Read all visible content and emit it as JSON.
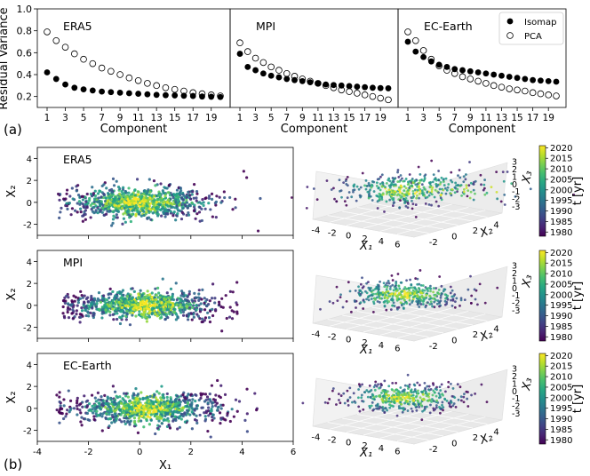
{
  "chart_data": {
    "type": "scatter",
    "figure_labels": [
      "(a)",
      "(b)"
    ],
    "panel_a": {
      "ylabel": "Residual Variance",
      "xlabel": "Component",
      "ylim": [
        0.1,
        1.0
      ],
      "yticks": [
        0.2,
        0.4,
        0.6,
        0.8,
        1.0
      ],
      "xticks": [
        1,
        3,
        5,
        7,
        9,
        11,
        13,
        15,
        17,
        19
      ],
      "components": [
        1,
        2,
        3,
        4,
        5,
        6,
        7,
        8,
        9,
        10,
        11,
        12,
        13,
        14,
        15,
        16,
        17,
        18,
        19,
        20
      ],
      "legend": {
        "isomap": "Isomap",
        "pca": "PCA",
        "placement": "top-right"
      },
      "panels": [
        {
          "title": "ERA5",
          "isomap": [
            0.42,
            0.36,
            0.31,
            0.28,
            0.265,
            0.255,
            0.245,
            0.24,
            0.235,
            0.23,
            0.225,
            0.22,
            0.215,
            0.212,
            0.21,
            0.207,
            0.205,
            0.2,
            0.198,
            0.195
          ],
          "pca": [
            0.79,
            0.71,
            0.65,
            0.59,
            0.54,
            0.5,
            0.46,
            0.43,
            0.4,
            0.37,
            0.345,
            0.32,
            0.3,
            0.28,
            0.265,
            0.25,
            0.235,
            0.225,
            0.215,
            0.205
          ]
        },
        {
          "title": "MPI",
          "isomap": [
            0.59,
            0.47,
            0.44,
            0.41,
            0.39,
            0.375,
            0.36,
            0.35,
            0.34,
            0.33,
            0.32,
            0.31,
            0.305,
            0.3,
            0.295,
            0.29,
            0.285,
            0.28,
            0.277,
            0.275
          ],
          "pca": [
            0.69,
            0.61,
            0.55,
            0.51,
            0.47,
            0.44,
            0.41,
            0.385,
            0.36,
            0.34,
            0.32,
            0.3,
            0.28,
            0.26,
            0.245,
            0.23,
            0.215,
            0.2,
            0.185,
            0.17
          ]
        },
        {
          "title": "EC-Earth",
          "isomap": [
            0.7,
            0.61,
            0.56,
            0.52,
            0.49,
            0.47,
            0.45,
            0.44,
            0.43,
            0.42,
            0.41,
            0.4,
            0.39,
            0.38,
            0.37,
            0.36,
            0.35,
            0.345,
            0.34,
            0.335
          ],
          "pca": [
            0.79,
            0.71,
            0.62,
            0.54,
            0.48,
            0.44,
            0.41,
            0.38,
            0.36,
            0.34,
            0.32,
            0.3,
            0.285,
            0.27,
            0.26,
            0.25,
            0.235,
            0.225,
            0.215,
            0.205
          ]
        }
      ]
    },
    "panel_b": {
      "xlabel": "X₁",
      "ylabel": "X₂",
      "xlim": [
        -4,
        6
      ],
      "ylim": [
        -3,
        5
      ],
      "xticks": [
        -4,
        -2,
        0,
        2,
        4,
        6
      ],
      "yticks": [
        -2,
        0,
        2,
        4
      ],
      "scatter_titles": [
        "ERA5",
        "MPI",
        "EC-Earth"
      ],
      "view3d": {
        "x_label": "X₁",
        "y_label": "X₂",
        "z_label": "X₃",
        "x_ticks": [
          "-4",
          "-2",
          "0",
          "2",
          "4",
          "6"
        ],
        "y_ticks": [
          "-2",
          "0",
          "2",
          "4"
        ],
        "z_ticks": [
          "-3",
          "-2",
          "-1",
          "0",
          "1",
          "2",
          "3"
        ]
      },
      "colorbar": {
        "label": "t [yr]",
        "ticks": [
          1980,
          1985,
          1990,
          1995,
          2000,
          2005,
          2010,
          2015,
          2020
        ],
        "range": [
          1978,
          2021
        ],
        "colormap": "viridis"
      }
    }
  }
}
